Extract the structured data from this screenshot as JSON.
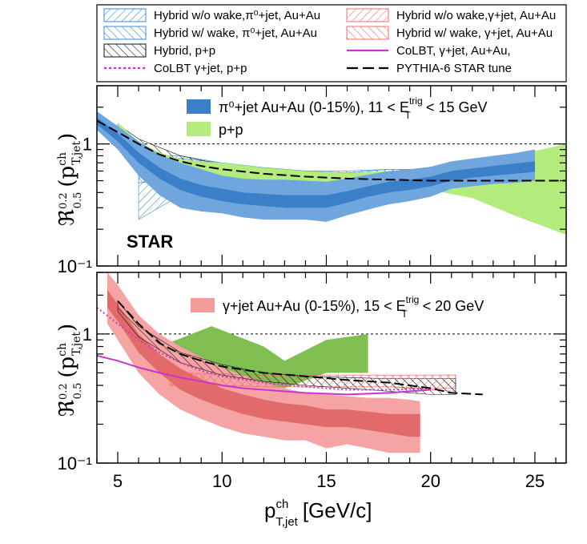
{
  "legend": {
    "entries": [
      {
        "label": "Hybrid w/o wake,π⁰+jet, Au+Au",
        "style": "hatch",
        "dir": "fwd",
        "color": "#3c8ad6"
      },
      {
        "label": "Hybrid w/o wake,γ+jet, Au+Au",
        "style": "hatch",
        "dir": "fwd",
        "color": "#ef6c6c"
      },
      {
        "label": "Hybrid w/ wake, π⁰+jet, Au+Au",
        "style": "hatch",
        "dir": "back",
        "color": "#3c8ad6"
      },
      {
        "label": "Hybrid w/ wake, γ+jet, Au+Au",
        "style": "hatch",
        "dir": "back",
        "color": "#ef6c6c"
      },
      {
        "label": "Hybrid, p+p",
        "style": "hatch",
        "dir": "back",
        "color": "#111111"
      },
      {
        "label": "CoLBT, γ+jet, Au+Au,",
        "style": "line",
        "dash": "",
        "color": "#cc33cc"
      },
      {
        "label": "CoLBT γ+jet, p+p",
        "style": "line",
        "dash": "3,3",
        "color": "#cc33cc"
      },
      {
        "label": "PYTHIA-6 STAR tune",
        "style": "line",
        "dash": "14,6",
        "color": "#000000"
      }
    ]
  },
  "top_panel": {
    "legend_entries": [
      {
        "label": "π⁰+jet   Au+Au (0-15%), 11 < E_T^trig < 15 GeV",
        "color": "#3a7fc8"
      },
      {
        "label": "p+p",
        "color": "#b3ec7c"
      }
    ],
    "star_label": "STAR",
    "ylabel": "ℜ^{0.2}_{0.5} (p^{ch}_{T,jet})",
    "ytick_labels": [
      "10⁻¹",
      "1"
    ]
  },
  "bottom_panel": {
    "legend_entries": [
      {
        "label": "γ+jet  Au+Au (0-15%), 15 < E_T^trig < 20 GeV",
        "color": "#f29b9b"
      }
    ],
    "ylabel": "ℜ^{0.2}_{0.5} (p^{ch}_{T,jet})",
    "ytick_labels": [
      "10⁻¹",
      "1"
    ]
  },
  "xaxis": {
    "title": "p^{ch}_{T,jet} [GeV/c]",
    "tick_labels": [
      "5",
      "10",
      "15",
      "20",
      "25"
    ]
  },
  "chart_data": [
    {
      "type": "line",
      "panel": "top",
      "xlabel": "p^{ch}_{T,jet} [GeV/c]",
      "ylabel": "ℜ^{0.2}_{0.5} (p^{ch}_{T,jet})",
      "xlim": [
        4,
        26.5
      ],
      "ylim": [
        0.1,
        3
      ],
      "yscale": "log",
      "reference_line": 1,
      "series": [
        {
          "name": "Hybrid w/o wake,π⁰+jet, Au+Au",
          "kind": "band",
          "fill": "hatch-fwd",
          "color": "#3c8ad6",
          "x": [
            6,
            8,
            10,
            12,
            14,
            16,
            18,
            20,
            22,
            24,
            26.5
          ],
          "lo": [
            0.24,
            0.38,
            0.44,
            0.46,
            0.48,
            0.5,
            0.52,
            0.52,
            0.5,
            0.5,
            0.5
          ],
          "hi": [
            0.8,
            0.8,
            0.7,
            0.64,
            0.6,
            0.58,
            0.62,
            0.62,
            0.62,
            0.6,
            0.62
          ]
        },
        {
          "name": "Hybrid w/ wake, π⁰+jet, Au+Au",
          "kind": "band",
          "fill": "hatch-back",
          "color": "#3c8ad6",
          "x": [
            6,
            8,
            10,
            12,
            14,
            16,
            18,
            20,
            22,
            24,
            26.5
          ],
          "lo": [
            0.48,
            0.52,
            0.52,
            0.52,
            0.5,
            0.48,
            0.5,
            0.5,
            0.44,
            0.38,
            0.36
          ],
          "hi": [
            0.8,
            0.76,
            0.7,
            0.64,
            0.6,
            0.6,
            0.62,
            0.62,
            0.66,
            0.7,
            0.74
          ]
        },
        {
          "name": "Hybrid, p+p",
          "kind": "band",
          "fill": "hatch-back",
          "color": "#111111",
          "x": [
            5,
            6,
            8,
            10,
            12,
            14,
            16
          ],
          "lo": [
            1.2,
            0.9,
            0.66,
            0.58,
            0.52,
            0.5,
            0.49
          ],
          "hi": [
            1.45,
            1.1,
            0.8,
            0.68,
            0.6,
            0.57,
            0.55
          ]
        },
        {
          "name": "p+p",
          "kind": "band",
          "fill": "solid",
          "color": "#b3ec7c",
          "x": [
            5,
            6,
            7,
            8,
            9,
            10,
            12,
            14,
            16,
            18,
            20,
            22,
            24,
            26.5
          ],
          "lo": [
            1.1,
            0.75,
            0.6,
            0.55,
            0.52,
            0.52,
            0.5,
            0.47,
            0.44,
            0.42,
            0.42,
            0.36,
            0.26,
            0.18
          ],
          "hi": [
            1.5,
            1.05,
            0.85,
            0.75,
            0.72,
            0.7,
            0.64,
            0.6,
            0.58,
            0.6,
            0.62,
            0.68,
            0.8,
            1.0
          ]
        },
        {
          "name": "π⁰+jet Au+Au (0-15%)",
          "kind": "band",
          "fill": "solid",
          "color": "#6ea6dd",
          "x": [
            4,
            5,
            6,
            7,
            8,
            9,
            10,
            11,
            12,
            13,
            14,
            15,
            16,
            17,
            18,
            19,
            20,
            21,
            22,
            23,
            24,
            25
          ],
          "lo": [
            1.3,
            0.9,
            0.55,
            0.38,
            0.3,
            0.28,
            0.27,
            0.25,
            0.24,
            0.24,
            0.24,
            0.23,
            0.26,
            0.29,
            0.32,
            0.34,
            0.37,
            0.43,
            0.45,
            0.47,
            0.48,
            0.5
          ],
          "hi": [
            1.85,
            1.4,
            1.05,
            0.82,
            0.7,
            0.62,
            0.55,
            0.52,
            0.51,
            0.51,
            0.5,
            0.49,
            0.52,
            0.56,
            0.6,
            0.62,
            0.65,
            0.72,
            0.76,
            0.8,
            0.84,
            0.9
          ]
        },
        {
          "name": "π⁰+jet Au+Au (0-15%) central",
          "kind": "band",
          "fill": "solid",
          "color": "#3a7fc8",
          "x": [
            4,
            5,
            6,
            7,
            8,
            9,
            10,
            11,
            12,
            13,
            14,
            15,
            16,
            17,
            18,
            19,
            20,
            21,
            22,
            23,
            24,
            25
          ],
          "lo": [
            1.45,
            1.05,
            0.7,
            0.52,
            0.42,
            0.37,
            0.34,
            0.32,
            0.31,
            0.3,
            0.3,
            0.3,
            0.33,
            0.37,
            0.4,
            0.42,
            0.45,
            0.5,
            0.53,
            0.55,
            0.57,
            0.59
          ],
          "hi": [
            1.65,
            1.22,
            0.85,
            0.64,
            0.52,
            0.46,
            0.43,
            0.4,
            0.39,
            0.38,
            0.38,
            0.38,
            0.41,
            0.45,
            0.49,
            0.51,
            0.54,
            0.6,
            0.63,
            0.66,
            0.69,
            0.72
          ]
        },
        {
          "name": "PYTHIA-6 STAR tune",
          "kind": "line",
          "dash": "12,5",
          "color": "#000000",
          "x": [
            4,
            5,
            6,
            7,
            8,
            9,
            10,
            12,
            14,
            16,
            18,
            20,
            22,
            24,
            26.5
          ],
          "y": [
            1.55,
            1.25,
            1.0,
            0.82,
            0.72,
            0.66,
            0.62,
            0.57,
            0.54,
            0.52,
            0.51,
            0.5,
            0.5,
            0.5,
            0.5
          ]
        }
      ]
    },
    {
      "type": "line",
      "panel": "bottom",
      "xlabel": "p^{ch}_{T,jet} [GeV/c]",
      "ylabel": "ℜ^{0.2}_{0.5} (p^{ch}_{T,jet})",
      "xlim": [
        4,
        26.5
      ],
      "ylim": [
        0.1,
        3
      ],
      "yscale": "log",
      "reference_line": 1,
      "series": [
        {
          "name": "p+p",
          "kind": "band",
          "fill": "solid",
          "color": "#7fbf52",
          "x": [
            5,
            7,
            9.5,
            12,
            13,
            15,
            17
          ],
          "lo": [
            1.3,
            0.36,
            0.48,
            0.42,
            0.38,
            0.5,
            0.5
          ],
          "hi": [
            2.2,
            0.8,
            1.15,
            0.8,
            0.62,
            0.9,
            1.0
          ]
        },
        {
          "name": "γ+jet Au+Au (0-15%)",
          "kind": "band",
          "fill": "solid",
          "color": "#f5a3a3",
          "x": [
            4.5,
            5,
            6,
            7,
            8,
            9,
            10,
            11,
            12,
            13,
            14,
            15,
            16,
            17,
            18,
            19,
            19.5
          ],
          "lo": [
            1.2,
            0.9,
            0.5,
            0.34,
            0.26,
            0.22,
            0.19,
            0.17,
            0.16,
            0.15,
            0.15,
            0.13,
            0.14,
            0.13,
            0.12,
            0.12,
            0.12
          ],
          "hi": [
            3.0,
            2.4,
            1.4,
            1.0,
            0.8,
            0.66,
            0.55,
            0.48,
            0.42,
            0.38,
            0.35,
            0.34,
            0.33,
            0.32,
            0.32,
            0.31,
            0.3
          ]
        },
        {
          "name": "γ+jet Au+Au (0-15%) central",
          "kind": "band",
          "fill": "solid",
          "color": "#e26a6a",
          "x": [
            4.5,
            5,
            6,
            7,
            8,
            9,
            10,
            11,
            12,
            13,
            14,
            15,
            16,
            17,
            18,
            19,
            19.5
          ],
          "lo": [
            1.6,
            1.25,
            0.72,
            0.5,
            0.37,
            0.31,
            0.27,
            0.24,
            0.22,
            0.21,
            0.2,
            0.19,
            0.19,
            0.18,
            0.17,
            0.16,
            0.16
          ],
          "hi": [
            2.2,
            1.7,
            1.0,
            0.7,
            0.54,
            0.45,
            0.38,
            0.34,
            0.31,
            0.29,
            0.28,
            0.26,
            0.26,
            0.25,
            0.24,
            0.24,
            0.24
          ]
        },
        {
          "name": "Hybrid w/o wake,γ+jet, Au+Au",
          "kind": "band",
          "fill": "hatch-fwd",
          "color": "#ef6c6c",
          "x": [
            7.5,
            10,
            12,
            14,
            16,
            18,
            20,
            21.2
          ],
          "lo": [
            0.4,
            0.4,
            0.39,
            0.39,
            0.39,
            0.39,
            0.38,
            0.38
          ],
          "hi": [
            0.5,
            0.49,
            0.48,
            0.48,
            0.48,
            0.48,
            0.48,
            0.48
          ]
        },
        {
          "name": "Hybrid w/ wake, γ+jet, Au+Au",
          "kind": "band",
          "fill": "hatch-back",
          "color": "#ef6c6c",
          "x": [
            7.5,
            10,
            12,
            14,
            16,
            18,
            20,
            21.2
          ],
          "lo": [
            0.4,
            0.4,
            0.39,
            0.39,
            0.39,
            0.39,
            0.37,
            0.36
          ],
          "hi": [
            0.5,
            0.49,
            0.48,
            0.48,
            0.48,
            0.48,
            0.48,
            0.48
          ]
        },
        {
          "name": "Hybrid, p+p",
          "kind": "band",
          "fill": "hatch-back",
          "color": "#111111",
          "x": [
            5,
            6,
            8,
            10,
            12,
            14,
            16,
            18,
            20,
            21.2
          ],
          "lo": [
            1.5,
            0.95,
            0.6,
            0.48,
            0.43,
            0.4,
            0.38,
            0.36,
            0.34,
            0.34
          ],
          "hi": [
            1.8,
            1.15,
            0.72,
            0.58,
            0.5,
            0.47,
            0.46,
            0.45,
            0.45,
            0.45
          ]
        },
        {
          "name": "CoLBT, γ+jet, Au+Au,",
          "kind": "line",
          "dash": "",
          "color": "#cc33cc",
          "x": [
            4,
            5,
            6,
            7,
            8,
            9,
            10,
            11,
            12,
            14,
            16,
            18,
            20
          ],
          "y": [
            0.68,
            0.62,
            0.55,
            0.5,
            0.46,
            0.43,
            0.4,
            0.38,
            0.37,
            0.35,
            0.34,
            0.35,
            0.37
          ]
        },
        {
          "name": "CoLBT γ+jet, p+p",
          "kind": "line",
          "dash": "2,3",
          "color": "#cc33cc",
          "x": [
            4,
            5,
            6,
            7,
            8,
            9,
            10,
            12,
            14,
            16,
            18,
            20
          ],
          "y": [
            1.6,
            1.2,
            0.9,
            0.72,
            0.6,
            0.52,
            0.47,
            0.42,
            0.39,
            0.37,
            0.37,
            0.38
          ]
        },
        {
          "name": "PYTHIA-6 STAR tune",
          "kind": "line",
          "dash": "12,5",
          "color": "#000000",
          "x": [
            5,
            6,
            7,
            8,
            9,
            10,
            12,
            14,
            16,
            18,
            20,
            21,
            22.5
          ],
          "y": [
            1.8,
            1.2,
            0.85,
            0.7,
            0.62,
            0.56,
            0.5,
            0.47,
            0.44,
            0.42,
            0.38,
            0.35,
            0.34
          ]
        }
      ]
    }
  ]
}
